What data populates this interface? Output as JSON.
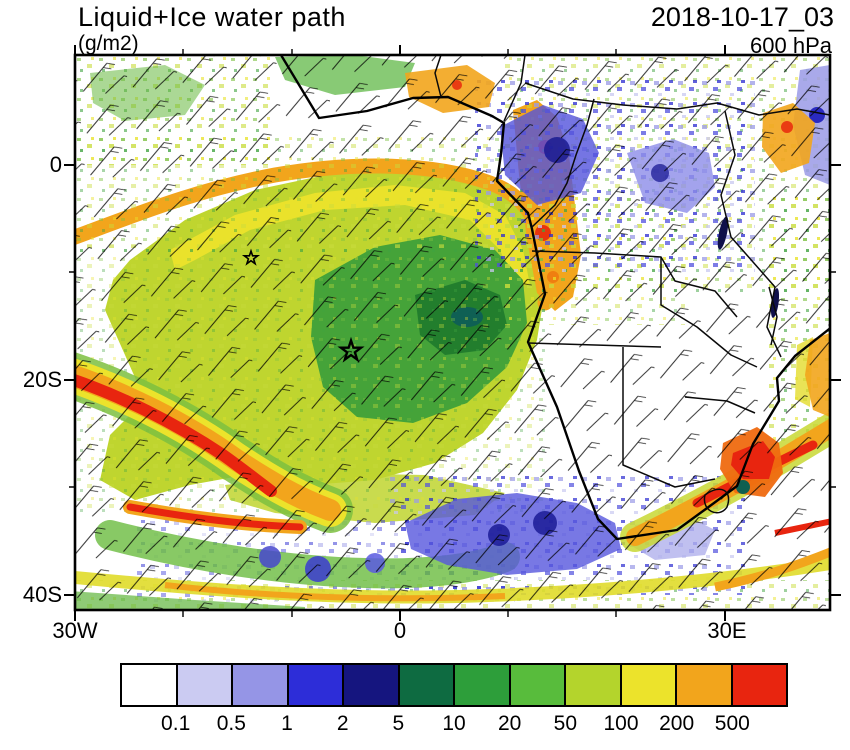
{
  "header": {
    "title": "Liquid+Ice water path",
    "units": "(g/m2)",
    "datetime": "2018-10-17_03",
    "level": "600 hPa"
  },
  "axes": {
    "y_labels": [
      "0",
      "20S",
      "40S"
    ],
    "x_labels": [
      "30W",
      "0",
      "30E"
    ]
  },
  "colorbar": {
    "labels": [
      "0.1",
      "0.5",
      "1",
      "2",
      "5",
      "10",
      "20",
      "50",
      "100",
      "200",
      "500"
    ],
    "colors": [
      "#ffffff",
      "#cbcbf2",
      "#9595e6",
      "#2d2dd8",
      "#15157f",
      "#0e6b41",
      "#2d9e3a",
      "#58bc3c",
      "#b4d42c",
      "#ece32b",
      "#f2a51c",
      "#e8250f"
    ]
  },
  "chart_data": {
    "type": "heatmap",
    "title": "Liquid+Ice water path",
    "units": "g/m2",
    "valid_time": "2018-10-17_03",
    "pressure_level": "600 hPa",
    "x_tick_labels": [
      "30W",
      "0",
      "30E"
    ],
    "y_tick_labels": [
      "0",
      "20S",
      "40S"
    ],
    "colorbar_levels": [
      0.1,
      0.5,
      1,
      2,
      5,
      10,
      20,
      50,
      100,
      200,
      500
    ],
    "colorbar_colors": [
      "#ffffff",
      "#cbcbf2",
      "#9595e6",
      "#2d2dd8",
      "#15157f",
      "#0e6b41",
      "#2d9e3a",
      "#58bc3c",
      "#b4d42c",
      "#ece32b",
      "#f2a51c",
      "#e8250f"
    ],
    "legend_position": "bottom",
    "grid": false,
    "overlays": [
      "wind barbs",
      "coastlines",
      "country borders",
      "star markers"
    ]
  }
}
